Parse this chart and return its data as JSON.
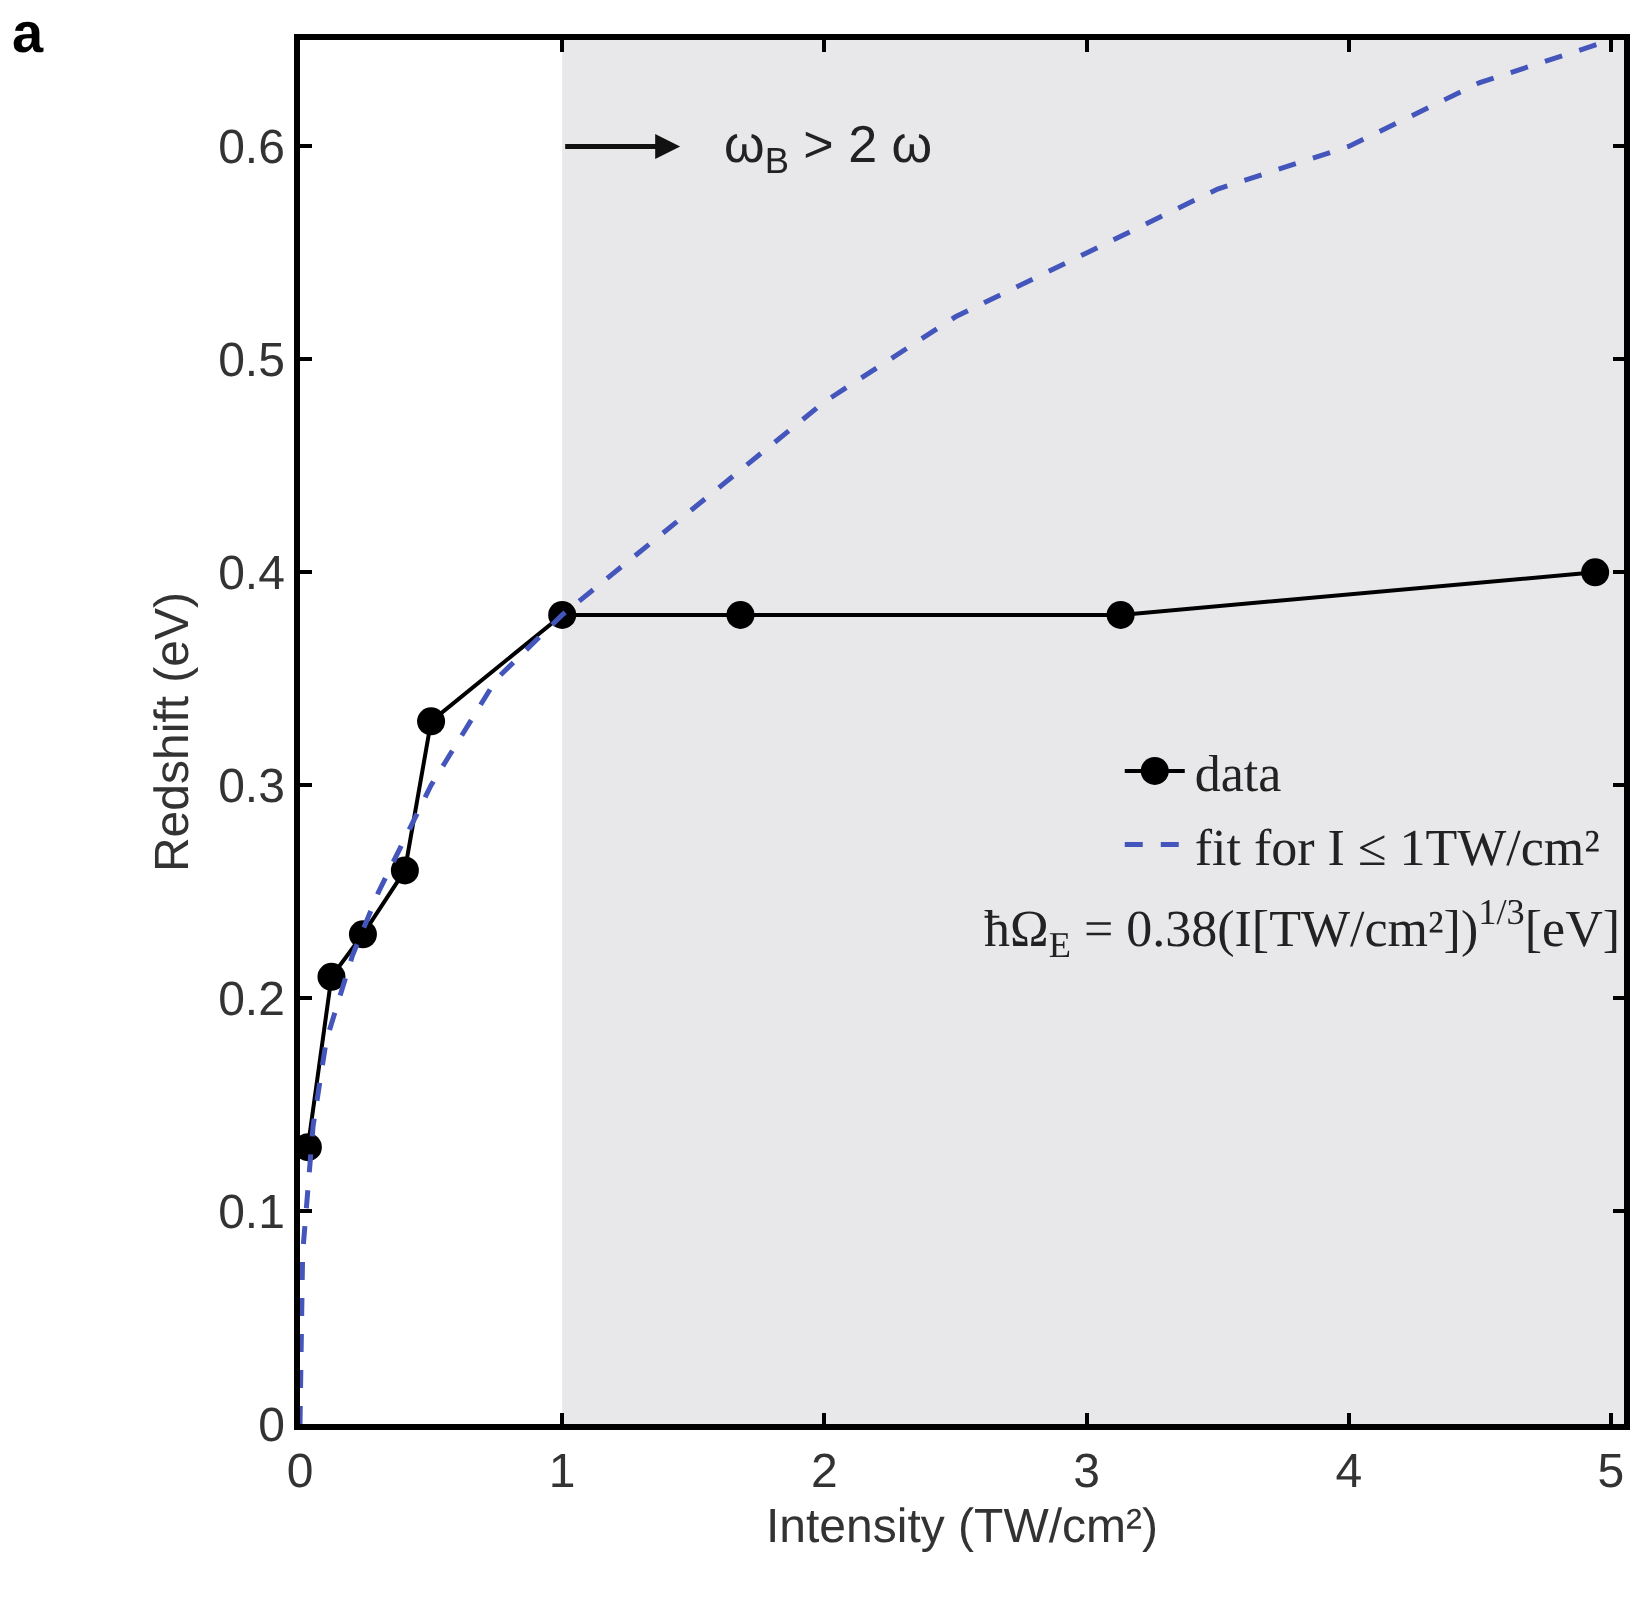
{
  "chart_data": {
    "type": "line",
    "xlabel": "Intensity (TW/cm²)",
    "ylabel": "Redshift (eV)",
    "xlim": [
      0,
      5.05
    ],
    "xticks": [
      0,
      1,
      2,
      3,
      4,
      5
    ],
    "ylim": [
      0,
      0.65
    ],
    "yticks": [
      0,
      0.1,
      0.2,
      0.3,
      0.4,
      0.5,
      0.6
    ],
    "grid": false,
    "legend": "right",
    "series": [
      {
        "name": "data",
        "color": "#000000",
        "marker": "circle",
        "line_style": "solid",
        "x": [
          0.03,
          0.12,
          0.24,
          0.4,
          0.5,
          1.0,
          1.68,
          3.13,
          4.94
        ],
        "values": [
          0.13,
          0.21,
          0.23,
          0.26,
          0.33,
          0.38,
          0.38,
          0.38,
          0.4
        ]
      },
      {
        "name": "fit for I ≤ 1TW/cm²",
        "color": "#4455bb",
        "marker": "none",
        "line_style": "dashed",
        "x": [
          0,
          0.01,
          0.05,
          0.1,
          0.2,
          0.3,
          0.5,
          0.75,
          1,
          1.5,
          2,
          2.5,
          3,
          3.5,
          4,
          4.5,
          5
        ],
        "values": [
          0,
          0.08,
          0.14,
          0.18,
          0.22,
          0.25,
          0.3,
          0.35,
          0.38,
          0.43,
          0.48,
          0.52,
          0.55,
          0.58,
          0.6,
          0.63,
          0.65
        ]
      }
    ],
    "bands": [
      {
        "axis": "x",
        "from": 1,
        "to": 5.05,
        "color": "#e8e8ea"
      }
    ],
    "annotations": [
      "a",
      "ω$_{B}$ > 2 ω",
      "ħΩ$_{E}$ = 0.38(I[TW/cm²])$^{1/3}$[eV]"
    ]
  }
}
